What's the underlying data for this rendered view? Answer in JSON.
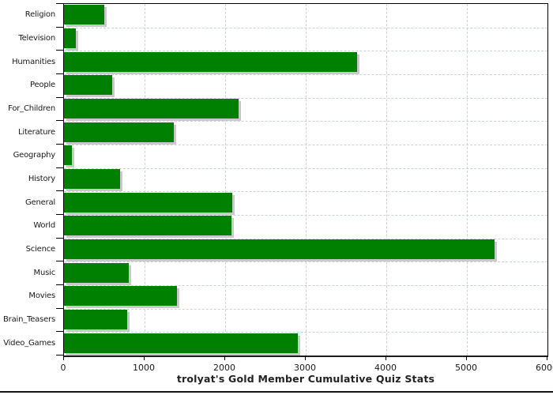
{
  "chart_data": {
    "type": "bar",
    "orientation": "horizontal",
    "title": "trolyat's Gold Member Cumulative Quiz Stats",
    "categories": [
      "Religion",
      "Television",
      "Humanities",
      "People",
      "For_Children",
      "Literature",
      "Geography",
      "History",
      "General",
      "World",
      "Science",
      "Music",
      "Movies",
      "Brain_Teasers",
      "Video_Games"
    ],
    "values": [
      500,
      150,
      3640,
      600,
      2170,
      1360,
      100,
      700,
      2090,
      2080,
      5340,
      800,
      1400,
      785,
      2900
    ],
    "xlabel": "",
    "ylabel": "",
    "xlim": [
      0,
      6000
    ],
    "x_ticks": [
      0,
      1000,
      2000,
      3000,
      4000,
      5000,
      6000
    ],
    "x_tick_labels": [
      "0",
      "1000",
      "2000",
      "3000",
      "4000",
      "5000",
      "6000"
    ],
    "grid": "dashed",
    "legend": "none",
    "bar_color": "#008000",
    "shadow_color": "#c9c9c9",
    "grid_color": "#c9d3da",
    "axis_color": "#000000",
    "title_color": "#222222",
    "background_color": "#ffffff"
  }
}
